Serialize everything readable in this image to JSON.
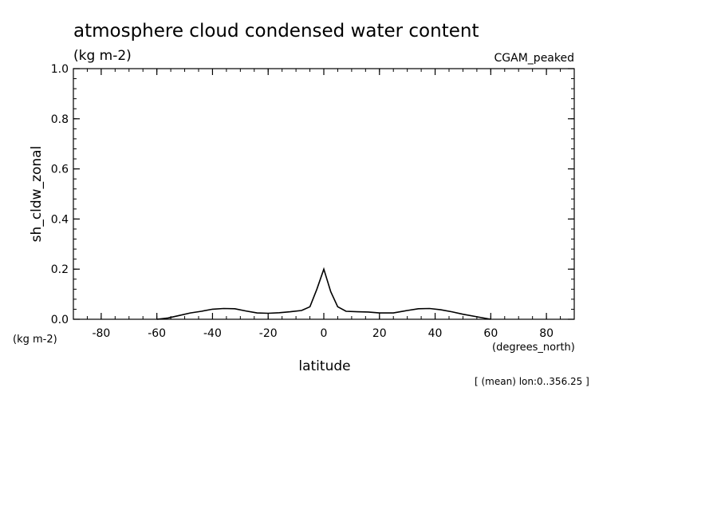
{
  "chart_data": {
    "type": "line",
    "title": "atmosphere cloud condensed water content",
    "subtitle": "(kg m-2)",
    "model_label": "CGAM_peaked",
    "ylabel": "sh_cldw_zonal",
    "y_units": "(kg m-2)",
    "xlabel": "latitude",
    "x_units": "(degrees_north)",
    "footnote": "[ (mean) lon:0..356.25 ]",
    "xlim": [
      -90,
      90
    ],
    "ylim": [
      0.0,
      1.0
    ],
    "x_ticks": [
      -80,
      -60,
      -40,
      -20,
      0,
      20,
      40,
      60,
      80
    ],
    "x_tick_labels": [
      "-80",
      "-60",
      "-40",
      "-20",
      "0",
      "20",
      "40",
      "60",
      "80"
    ],
    "y_ticks": [
      0.0,
      0.2,
      0.4,
      0.6,
      0.8,
      1.0
    ],
    "y_tick_labels": [
      "0.0",
      "0.2",
      "0.4",
      "0.6",
      "0.8",
      "1.0"
    ],
    "grid": false,
    "line_color": "#000000",
    "series": [
      {
        "x": [
          -60,
          -56,
          -52,
          -48,
          -44,
          -40,
          -36,
          -32,
          -28,
          -24,
          -20,
          -16,
          -12,
          -8,
          -5,
          -2.5,
          0,
          2.5,
          5,
          8,
          12,
          16,
          20,
          25,
          30,
          34,
          38,
          42,
          46,
          50,
          55,
          60
        ],
        "y": [
          0.0,
          0.005,
          0.015,
          0.025,
          0.032,
          0.04,
          0.043,
          0.042,
          0.033,
          0.025,
          0.024,
          0.026,
          0.03,
          0.035,
          0.05,
          0.12,
          0.2,
          0.11,
          0.05,
          0.032,
          0.03,
          0.029,
          0.025,
          0.025,
          0.035,
          0.042,
          0.043,
          0.038,
          0.03,
          0.02,
          0.01,
          0.0
        ]
      }
    ]
  }
}
